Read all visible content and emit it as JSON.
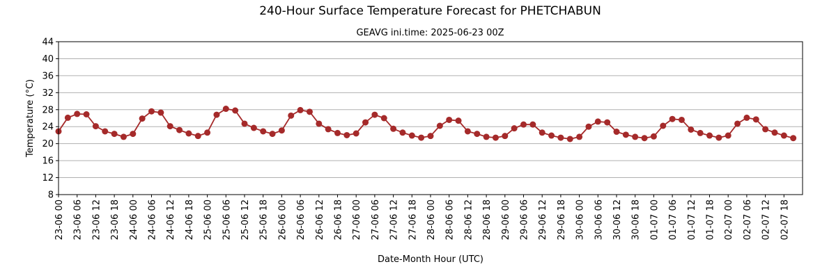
{
  "chart_data": {
    "type": "line",
    "title": "240-Hour Surface Temperature Forecast for PHETCHABUN",
    "subtitle": "GEAVG ini.time: 2025-06-23 00Z",
    "xlabel": "Date-Month Hour (UTC)",
    "ylabel": "Temperature (°C)",
    "ylim": [
      8,
      44
    ],
    "yticks": [
      8,
      12,
      16,
      20,
      24,
      28,
      32,
      36,
      40,
      44
    ],
    "grid": "horizontal",
    "legend": "none",
    "x_step_hours": 3,
    "xtick_labels": [
      "23-06 00",
      "23-06 06",
      "23-06 12",
      "23-06 18",
      "24-06 00",
      "24-06 06",
      "24-06 12",
      "24-06 18",
      "25-06 00",
      "25-06 06",
      "25-06 12",
      "25-06 18",
      "26-06 00",
      "26-06 06",
      "26-06 12",
      "26-06 18",
      "27-06 00",
      "27-06 06",
      "27-06 12",
      "27-06 18",
      "28-06 00",
      "28-06 06",
      "28-06 12",
      "28-06 18",
      "29-06 00",
      "29-06 06",
      "29-06 12",
      "29-06 18",
      "30-06 00",
      "30-06 06",
      "30-06 12",
      "30-06 18",
      "01-07 00",
      "01-07 06",
      "01-07 12",
      "01-07 18",
      "02-07 00",
      "02-07 06",
      "02-07 12",
      "02-07 18"
    ],
    "series": [
      {
        "color": "#a52a2a",
        "values": [
          22.9,
          26.1,
          27.0,
          26.9,
          24.1,
          22.9,
          22.3,
          21.6,
          22.3,
          25.9,
          27.6,
          27.3,
          24.1,
          23.2,
          22.4,
          21.8,
          22.6,
          26.8,
          28.2,
          27.8,
          24.7,
          23.7,
          22.9,
          22.3,
          23.1,
          26.6,
          27.9,
          27.5,
          24.7,
          23.4,
          22.5,
          22.0,
          22.4,
          25.0,
          26.8,
          26.0,
          23.5,
          22.6,
          21.9,
          21.4,
          21.8,
          24.2,
          25.6,
          25.4,
          22.9,
          22.3,
          21.6,
          21.4,
          21.8,
          23.6,
          24.5,
          24.5,
          22.6,
          21.9,
          21.4,
          21.1,
          21.6,
          24.0,
          25.2,
          25.0,
          22.8,
          22.1,
          21.6,
          21.3,
          21.7,
          24.2,
          25.8,
          25.6,
          23.3,
          22.5,
          21.9,
          21.4,
          21.9,
          24.7,
          26.1,
          25.7,
          23.4,
          22.6,
          21.9,
          21.3
        ]
      }
    ]
  }
}
